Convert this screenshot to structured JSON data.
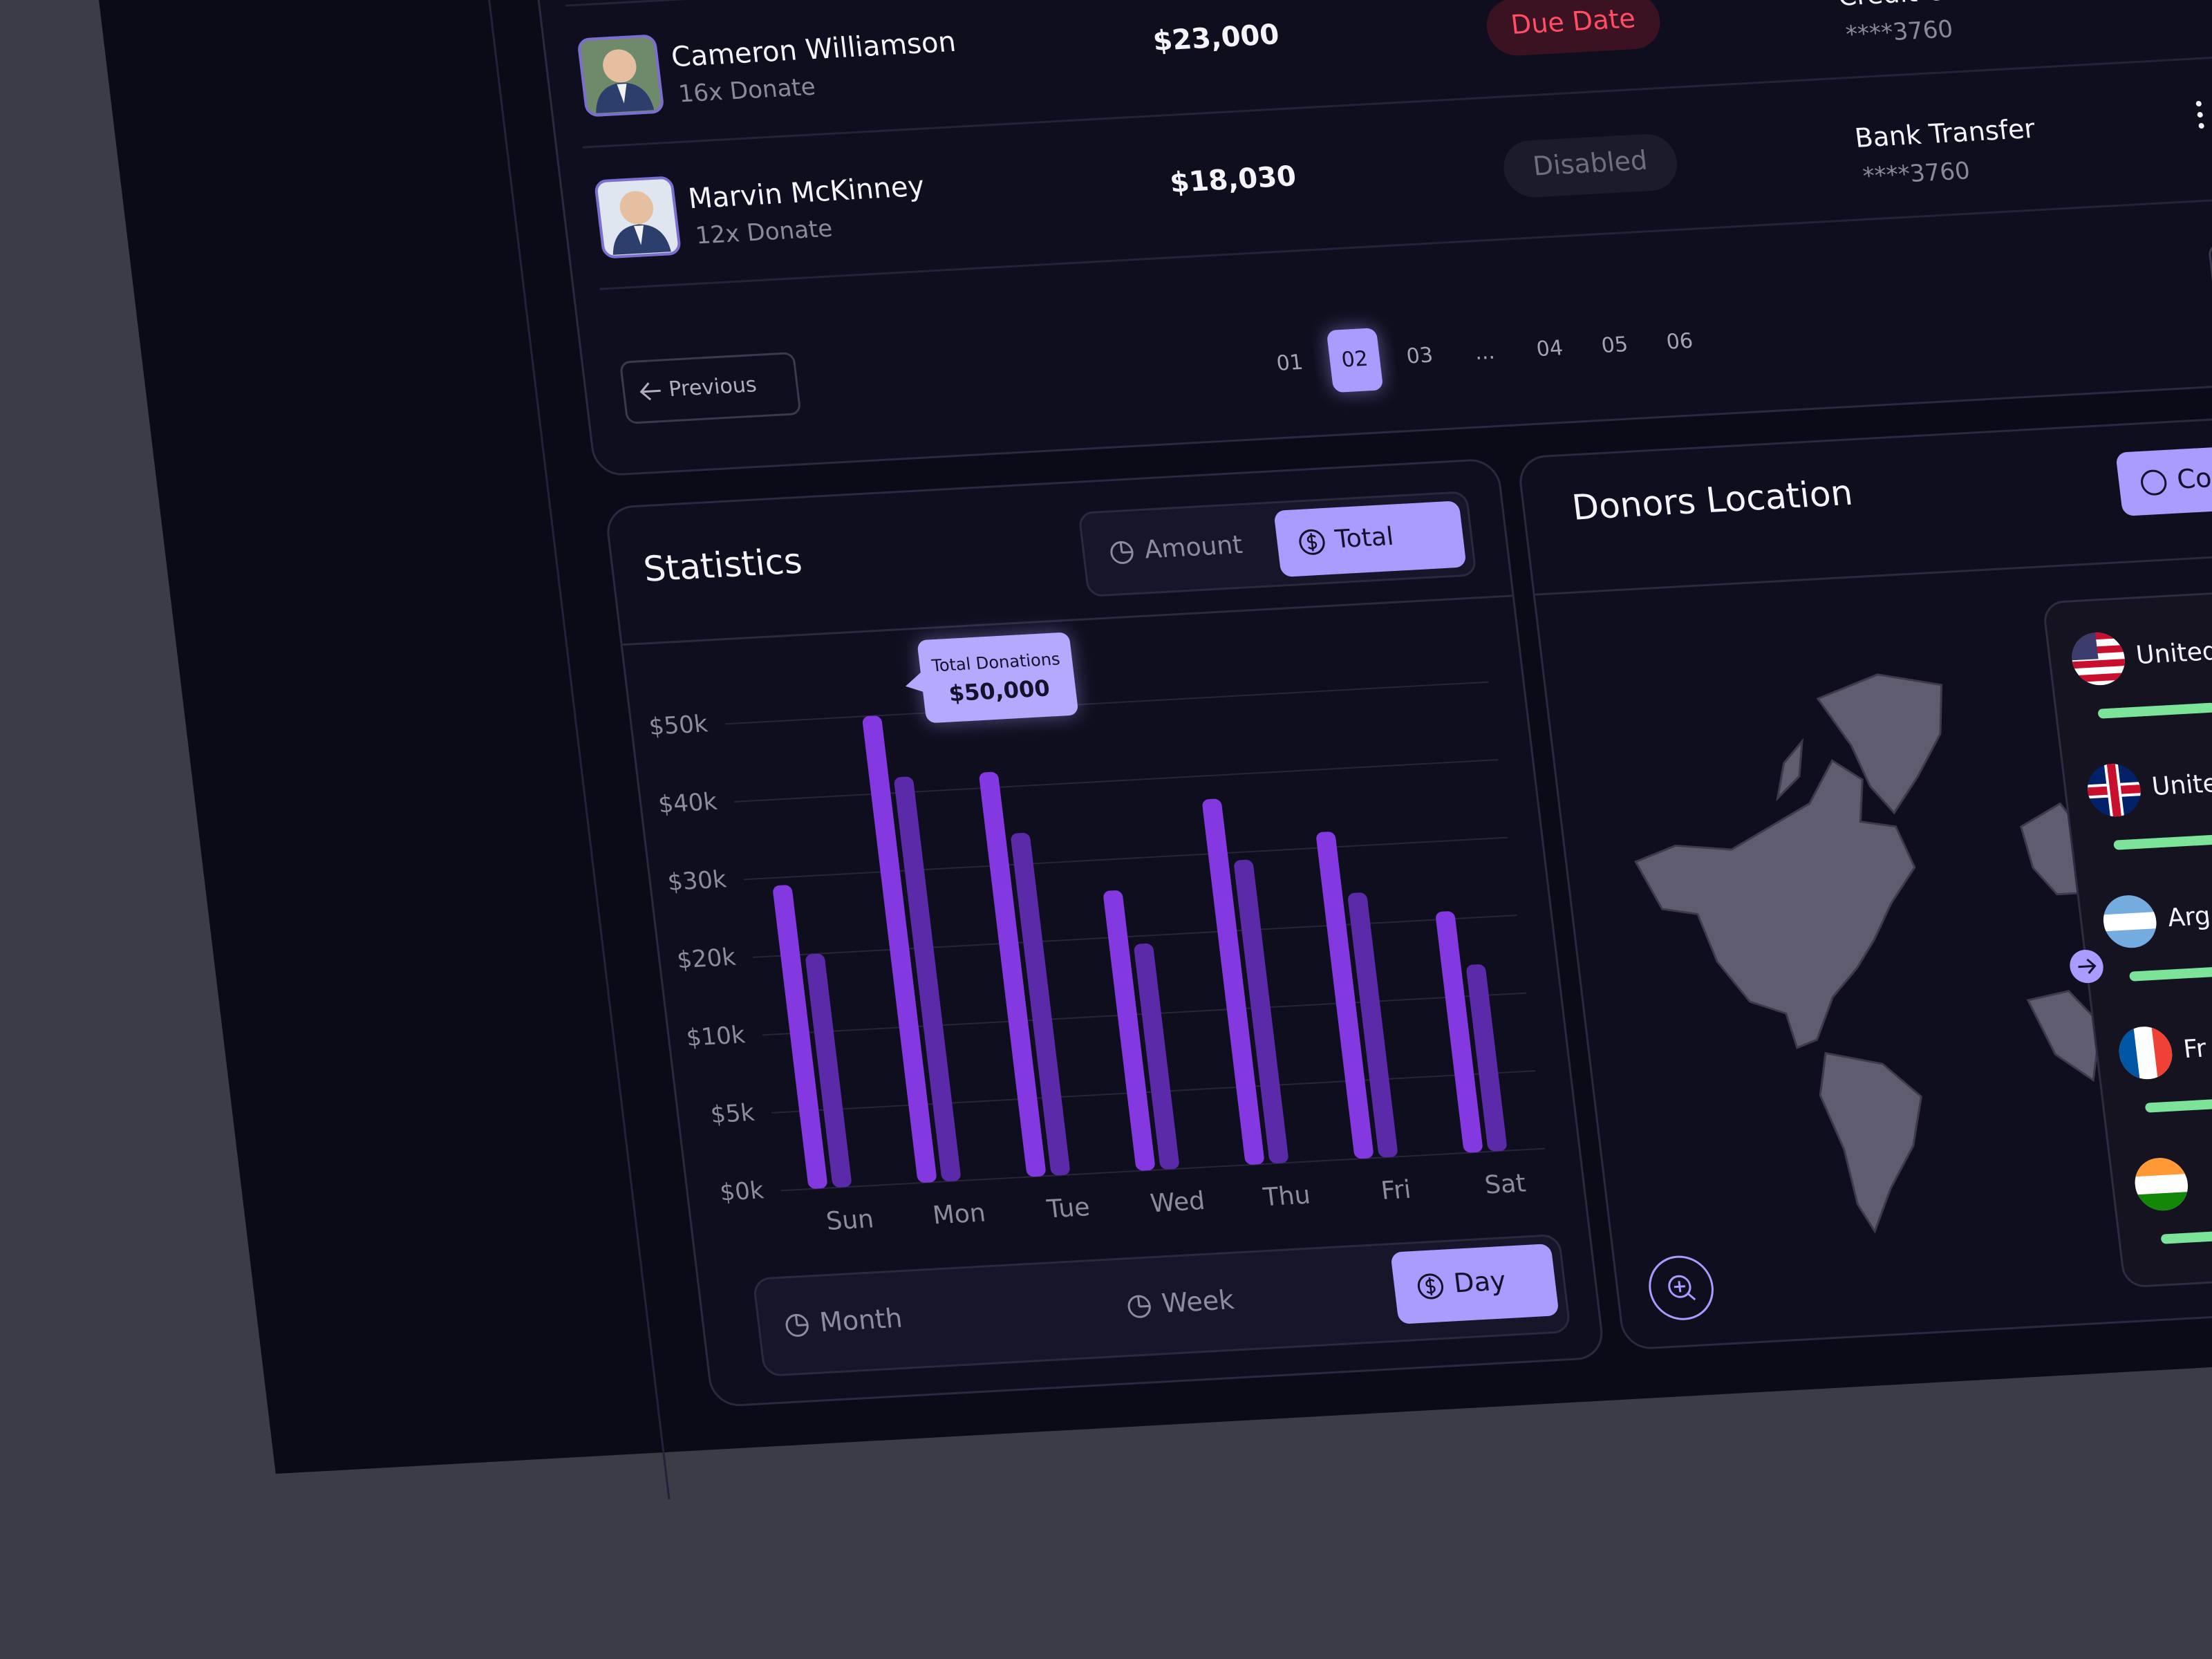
{
  "donations_table": {
    "rows": [
      {
        "name": "Cameron Williamson",
        "count": "16x Donate",
        "amount": "$23,000",
        "status": "Due Date",
        "method": "Credit Card",
        "account": "****3760"
      },
      {
        "name": "Marvin McKinney",
        "count": "12x Donate",
        "amount": "$18,030",
        "status": "Disabled",
        "method": "Bank Transfer",
        "account": "****3760"
      }
    ]
  },
  "pagination": {
    "previous": "Previous",
    "pages": [
      "01",
      "02",
      "03",
      "...",
      "04",
      "05",
      "06"
    ],
    "active": 1
  },
  "statistics": {
    "title": "Statistics",
    "toggle": [
      "Amount",
      "Total"
    ],
    "period_toggle": [
      "Month",
      "Week",
      "Day"
    ]
  },
  "chart_data": {
    "type": "bar",
    "categories": [
      "Sun",
      "Mon",
      "Tue",
      "Wed",
      "Thu",
      "Fri",
      "Sat"
    ],
    "series": [
      {
        "color": "#8438e0",
        "values": [
          29000,
          50000,
          42000,
          26000,
          37000,
          32000,
          21000
        ]
      },
      {
        "color": "#5b2aa8",
        "values": [
          20000,
          42000,
          34000,
          19000,
          29000,
          24000,
          14000
        ]
      }
    ],
    "ylim": [
      0,
      50000
    ],
    "yticks": [
      {
        "value": 0,
        "label": "$0k"
      },
      {
        "value": 5000,
        "label": "$5k"
      },
      {
        "value": 10000,
        "label": "$10k"
      },
      {
        "value": 20000,
        "label": "$20k"
      },
      {
        "value": 30000,
        "label": "$30k"
      },
      {
        "value": 40000,
        "label": "$40k"
      },
      {
        "value": 50000,
        "label": "$50k"
      }
    ],
    "grid": true,
    "tooltip": {
      "title": "Total Donations",
      "value": 50000,
      "label": "$50,000",
      "category": 1
    }
  },
  "donors_location": {
    "title": "Donors Location",
    "button": "Co",
    "countries": [
      "United",
      "Unite",
      "Arg",
      "Fr"
    ]
  }
}
